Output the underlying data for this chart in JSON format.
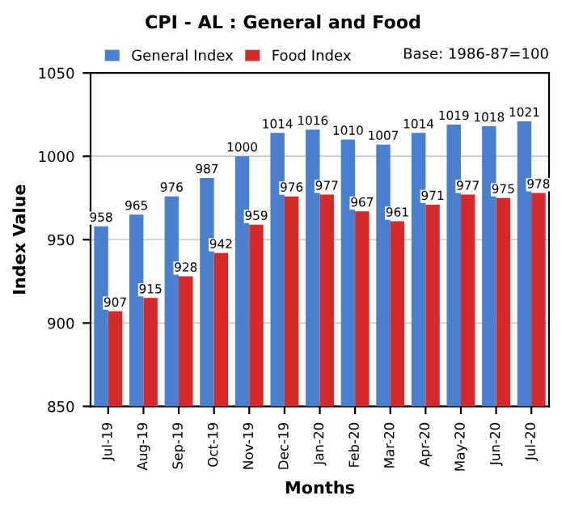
{
  "chart_data": {
    "type": "bar",
    "title": "CPI - AL : General and Food",
    "xlabel": "Months",
    "ylabel": "Index Value",
    "annotations": [
      "Base: 1986-87=100"
    ],
    "categories": [
      "Jul-19",
      "Aug-19",
      "Sep-19",
      "Oct-19",
      "Nov-19",
      "Dec-19",
      "Jan-20",
      "Feb-20",
      "Mar-20",
      "Apr-20",
      "May-20",
      "Jun-20",
      "Jul-20"
    ],
    "series": [
      {
        "name": "General Index",
        "color": "#4a7fd0",
        "values": [
          958,
          965,
          976,
          987,
          1000,
          1014,
          1016,
          1010,
          1007,
          1014,
          1019,
          1018,
          1021
        ]
      },
      {
        "name": "Food Index",
        "color": "#d62a2a",
        "values": [
          907,
          915,
          928,
          942,
          959,
          976,
          977,
          967,
          961,
          971,
          977,
          975,
          978
        ]
      }
    ],
    "ylim": [
      850,
      1050
    ],
    "yticks": [
      850,
      900,
      950,
      1000,
      1050
    ],
    "grid": "y",
    "legend": "top",
    "data_labels": true
  }
}
